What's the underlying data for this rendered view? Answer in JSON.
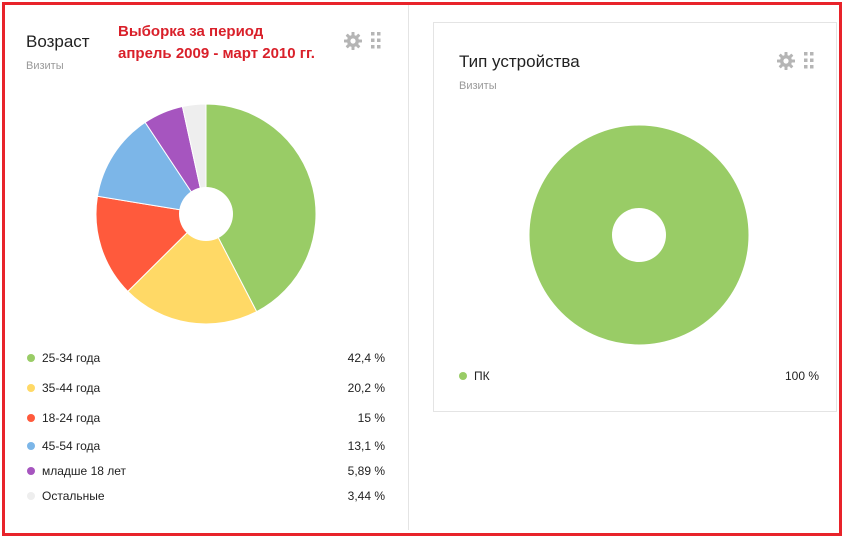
{
  "annotation": {
    "line1": "Выборка за период",
    "line2": "апрель 2009 - март 2010 гг."
  },
  "icons": {
    "settings": "gear-icon",
    "drag": "drag-handle-icon"
  },
  "widgets": [
    {
      "title": "Возраст",
      "subtitle": "Визиты"
    },
    {
      "title": "Тип устройства",
      "subtitle": "Визиты"
    }
  ],
  "chart_data": [
    {
      "type": "pie",
      "title": "Возраст",
      "subtitle": "Визиты",
      "donut": true,
      "legend_position": "bottom",
      "slices": [
        {
          "label": "25-34 года",
          "value": 42.4,
          "value_label": "42,4 %",
          "color": "#99cc66"
        },
        {
          "label": "35-44 года",
          "value": 20.2,
          "value_label": "20,2 %",
          "color": "#ffd966"
        },
        {
          "label": "18-24 года",
          "value": 15,
          "value_label": "15 %",
          "color": "#ff5a3c"
        },
        {
          "label": "45-54 года",
          "value": 13.1,
          "value_label": "13,1 %",
          "color": "#7cb6e8"
        },
        {
          "label": "младше 18 лет",
          "value": 5.89,
          "value_label": "5,89 %",
          "color": "#a655bf"
        },
        {
          "label": "Остальные",
          "value": 3.44,
          "value_label": "3,44 %",
          "color": "#eeeeee"
        }
      ]
    },
    {
      "type": "pie",
      "title": "Тип устройства",
      "subtitle": "Визиты",
      "donut": true,
      "legend_position": "bottom",
      "slices": [
        {
          "label": "ПК",
          "value": 100,
          "value_label": "100 %",
          "color": "#99cc66"
        }
      ]
    }
  ]
}
